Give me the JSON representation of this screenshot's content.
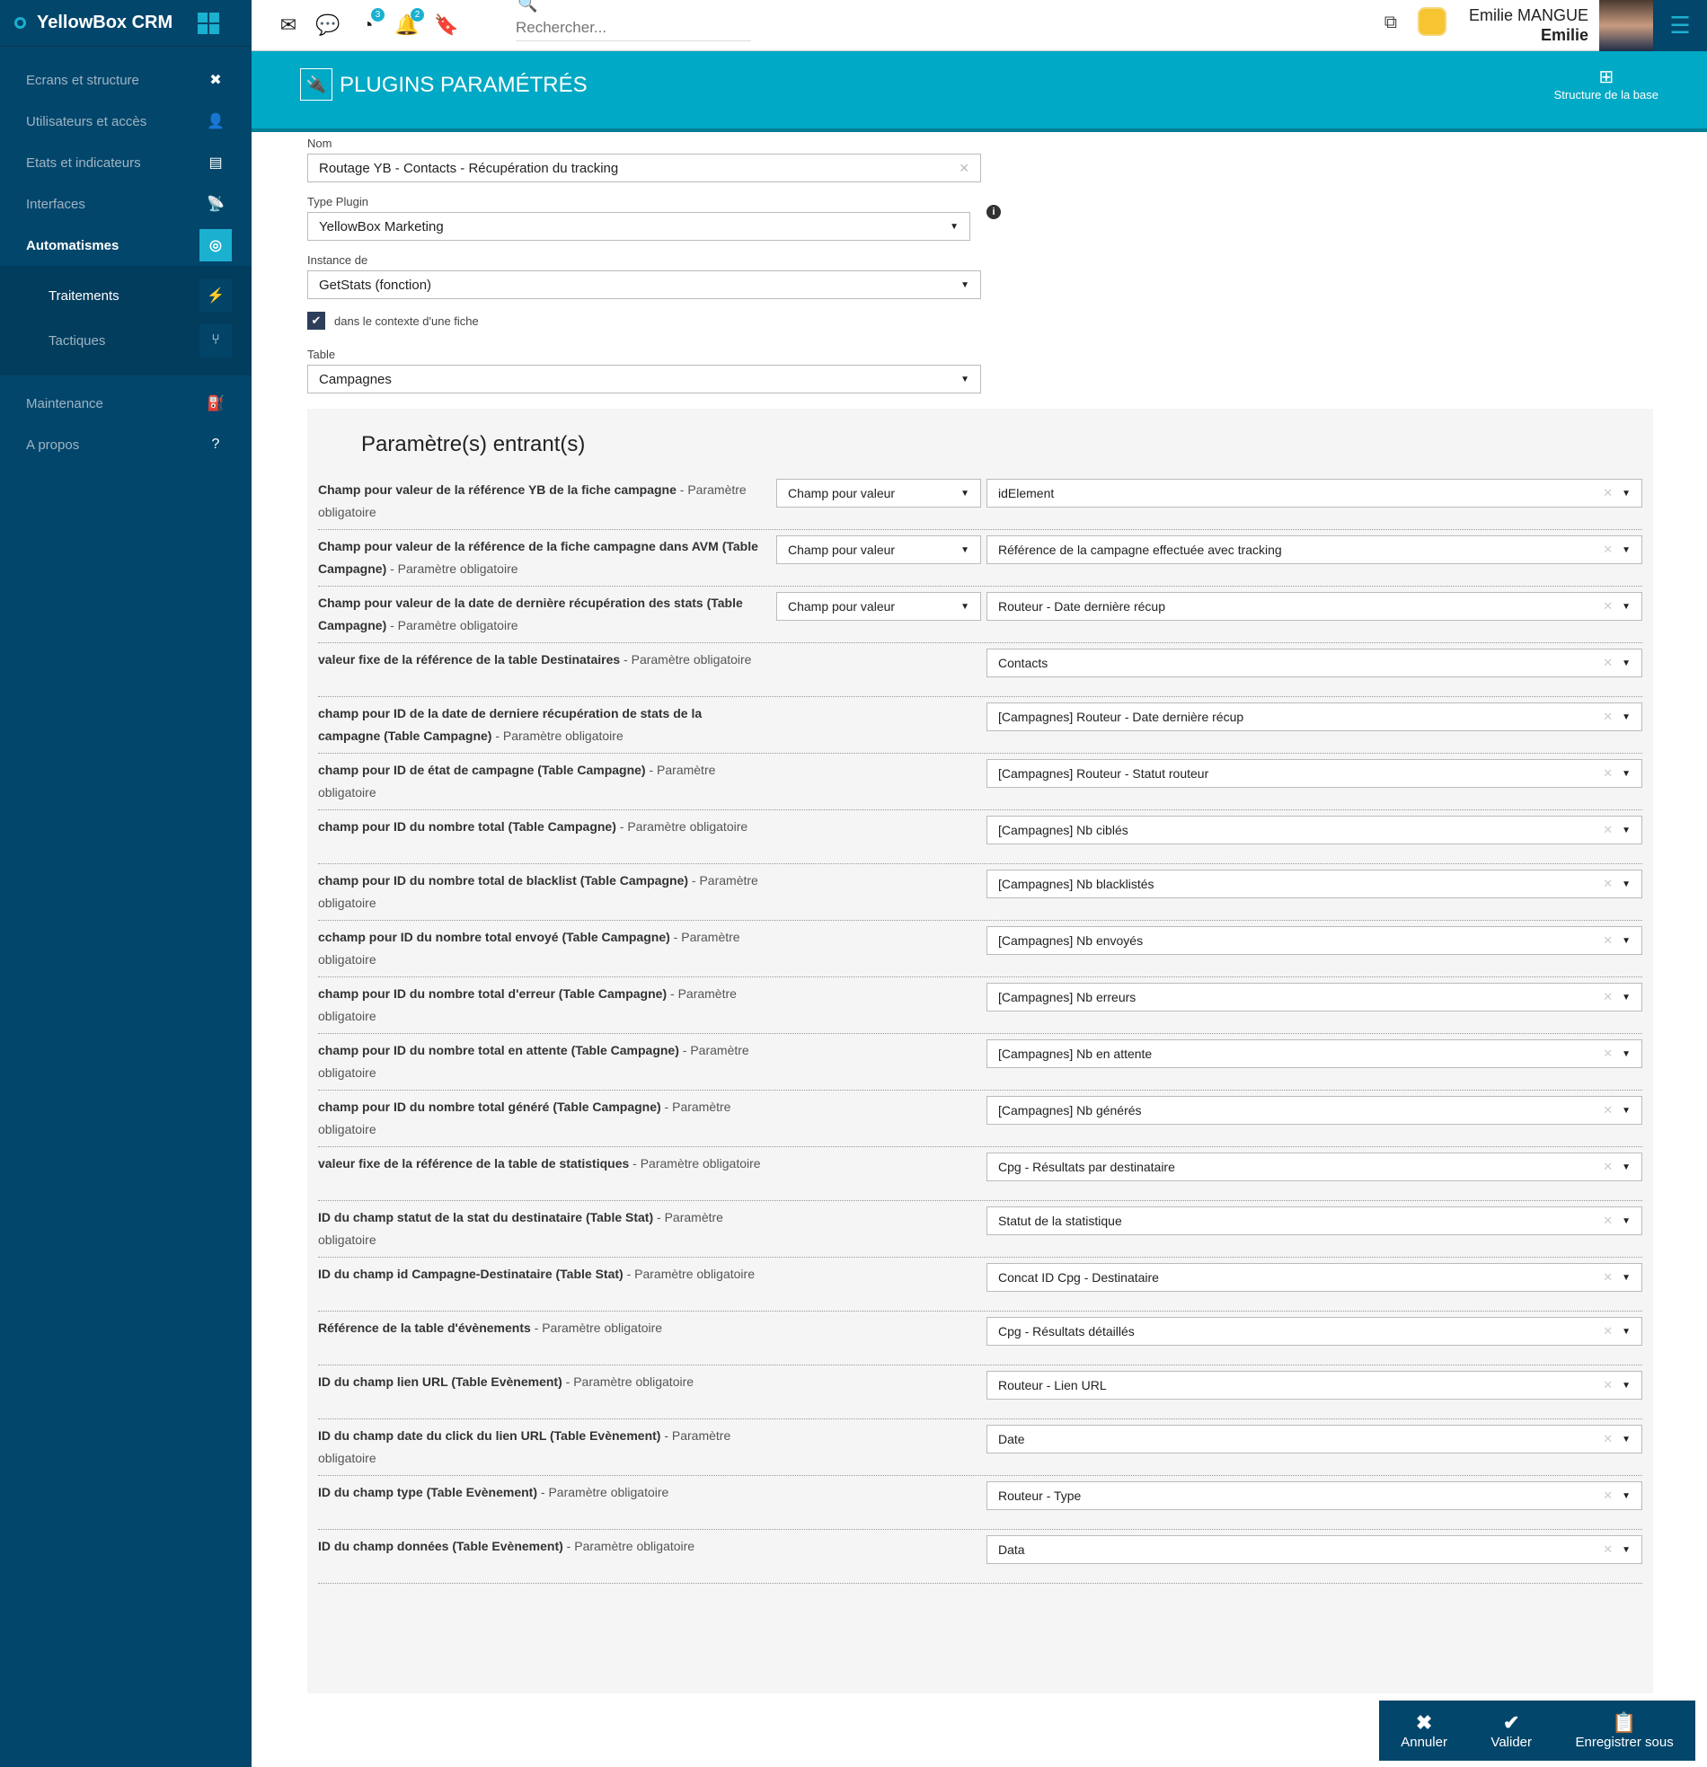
{
  "app": {
    "name": "YellowBox CRM",
    "accent": "#00a9c5",
    "sidebar_bg": "#03466b"
  },
  "sidebar": {
    "items": [
      {
        "label": "Ecrans et structure",
        "icon": "tools-icon",
        "glyph": "✖"
      },
      {
        "label": "Utilisateurs et accès",
        "icon": "user-lock-icon",
        "glyph": "👤"
      },
      {
        "label": "Etats et indicateurs",
        "icon": "report-icon",
        "glyph": "▤"
      },
      {
        "label": "Interfaces",
        "icon": "satellite-icon",
        "glyph": "📡"
      },
      {
        "label": "Automatismes",
        "icon": "target-icon",
        "glyph": "◎"
      }
    ],
    "subitems": [
      {
        "label": "Traitements",
        "icon": "bolt-icon",
        "glyph": "⚡"
      },
      {
        "label": "Tactiques",
        "icon": "branch-icon",
        "glyph": "⑂"
      }
    ],
    "bottom": [
      {
        "label": "Maintenance",
        "icon": "fuel-icon",
        "glyph": "⛽"
      },
      {
        "label": "A propos",
        "icon": "question-icon",
        "glyph": "?"
      }
    ]
  },
  "topbar": {
    "search_placeholder": "Rechercher...",
    "badges": {
      "dashboard": "3",
      "notifications": "2"
    },
    "user_fullname": "Emilie MANGUE",
    "user_first": "Emilie"
  },
  "header": {
    "title": "PLUGINS PARAMÉTRÉS",
    "structure_label": "Structure de la base"
  },
  "form": {
    "nom_label": "Nom",
    "nom_value": "Routage YB - Contacts - Récupération du tracking",
    "type_label": "Type Plugin",
    "type_value": "YellowBox Marketing",
    "instance_label": "Instance de",
    "instance_value": "GetStats (fonction)",
    "context_label": "dans le contexte d'une fiche",
    "context_checked": true,
    "table_label": "Table",
    "table_value": "Campagnes"
  },
  "params": {
    "title": "Paramètre(s) entrant(s)",
    "rows": [
      {
        "bold": "Champ pour valeur de la référence YB de la fiche campagne",
        "rest": " - Paramètre obligatoire",
        "mode": "Champ pour valeur",
        "value": "idElement"
      },
      {
        "bold": "Champ pour valeur de la référence de la fiche campagne dans AVM (Table Campagne)",
        "rest": " - Paramètre obligatoire",
        "mode": "Champ pour valeur",
        "value": "Référence de la campagne effectuée avec tracking"
      },
      {
        "bold": "Champ pour valeur de la date de dernière récupération des stats (Table Campagne)",
        "rest": " - Paramètre obligatoire",
        "mode": "Champ pour valeur",
        "value": "Routeur - Date dernière récup"
      },
      {
        "bold": "valeur fixe de la référence de la table Destinataires",
        "rest": " - Paramètre obligatoire",
        "value": "Contacts"
      },
      {
        "bold": "champ pour ID de la date de derniere récupération de stats de la campagne (Table Campagne)",
        "rest": " - Paramètre obligatoire",
        "value": "[Campagnes] Routeur - Date dernière récup"
      },
      {
        "bold": "champ pour ID de état de campagne (Table Campagne)",
        "rest": " - Paramètre obligatoire",
        "value": "[Campagnes] Routeur - Statut routeur"
      },
      {
        "bold": "champ pour ID du nombre total (Table Campagne)",
        "rest": " - Paramètre obligatoire",
        "value": "[Campagnes] Nb ciblés"
      },
      {
        "bold": "champ pour ID du nombre total de blacklist (Table Campagne)",
        "rest": " - Paramètre obligatoire",
        "value": "[Campagnes] Nb blacklistés"
      },
      {
        "bold": "cchamp pour ID du nombre total envoyé (Table Campagne)",
        "rest": " - Paramètre obligatoire",
        "value": "[Campagnes] Nb envoyés"
      },
      {
        "bold": "champ pour ID du nombre total d'erreur (Table Campagne)",
        "rest": " - Paramètre obligatoire",
        "value": "[Campagnes] Nb erreurs"
      },
      {
        "bold": "champ pour ID du nombre total en attente (Table Campagne)",
        "rest": " - Paramètre obligatoire",
        "value": "[Campagnes] Nb en attente"
      },
      {
        "bold": "champ pour ID du nombre total généré (Table Campagne)",
        "rest": " - Paramètre obligatoire",
        "value": "[Campagnes] Nb générés"
      },
      {
        "bold": "valeur fixe de la référence de la table de statistiques",
        "rest": " - Paramètre obligatoire",
        "value": "Cpg - Résultats par destinataire"
      },
      {
        "bold": "ID du champ statut de la stat du destinataire (Table Stat)",
        "rest": " - Paramètre obligatoire",
        "value": "Statut de la statistique"
      },
      {
        "bold": "ID du champ id Campagne-Destinataire (Table Stat)",
        "rest": " - Paramètre obligatoire",
        "value": "Concat ID Cpg - Destinataire"
      },
      {
        "bold": "Référence de la table d'évènements",
        "rest": " - Paramètre obligatoire",
        "value": "Cpg - Résultats détaillés"
      },
      {
        "bold": "ID du champ lien URL (Table Evènement)",
        "rest": " - Paramètre obligatoire",
        "value": "Routeur - Lien URL"
      },
      {
        "bold": "ID du champ date du click du lien URL (Table Evènement)",
        "rest": " - Paramètre obligatoire",
        "value": "Date"
      },
      {
        "bold": "ID du champ type (Table Evènement)",
        "rest": " - Paramètre obligatoire",
        "value": "Routeur - Type"
      },
      {
        "bold": "ID du champ données (Table Evènement)",
        "rest": " - Paramètre obligatoire",
        "value": "Data"
      }
    ]
  },
  "actions": {
    "cancel": "Annuler",
    "validate": "Valider",
    "save_as": "Enregistrer sous"
  }
}
